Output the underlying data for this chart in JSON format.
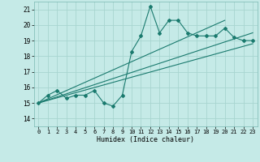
{
  "title": "",
  "xlabel": "Humidex (Indice chaleur)",
  "xlim": [
    -0.5,
    23.5
  ],
  "ylim": [
    13.5,
    21.5
  ],
  "xticks": [
    0,
    1,
    2,
    3,
    4,
    5,
    6,
    7,
    8,
    9,
    10,
    11,
    12,
    13,
    14,
    15,
    16,
    17,
    18,
    19,
    20,
    21,
    22,
    23
  ],
  "yticks": [
    14,
    15,
    16,
    17,
    18,
    19,
    20,
    21
  ],
  "bg_color": "#c5eae7",
  "line_color": "#1a7a6e",
  "grid_color": "#a8d5d0",
  "main_curve_x": [
    0,
    1,
    2,
    3,
    4,
    5,
    6,
    7,
    8,
    9,
    10,
    11,
    12,
    13,
    14,
    15,
    16,
    17,
    18,
    19,
    20,
    21,
    22,
    23
  ],
  "main_curve_y": [
    15.0,
    15.5,
    15.8,
    15.3,
    15.5,
    15.5,
    15.8,
    15.0,
    14.8,
    15.5,
    18.3,
    19.3,
    21.2,
    19.5,
    20.3,
    20.3,
    19.5,
    19.3,
    19.3,
    19.3,
    19.8,
    19.2,
    19.0,
    19.0
  ],
  "line1_x": [
    0,
    23
  ],
  "line1_y": [
    15.0,
    18.8
  ],
  "line2_x": [
    0,
    23
  ],
  "line2_y": [
    15.0,
    19.5
  ],
  "line3_x": [
    0,
    20
  ],
  "line3_y": [
    15.0,
    20.3
  ]
}
